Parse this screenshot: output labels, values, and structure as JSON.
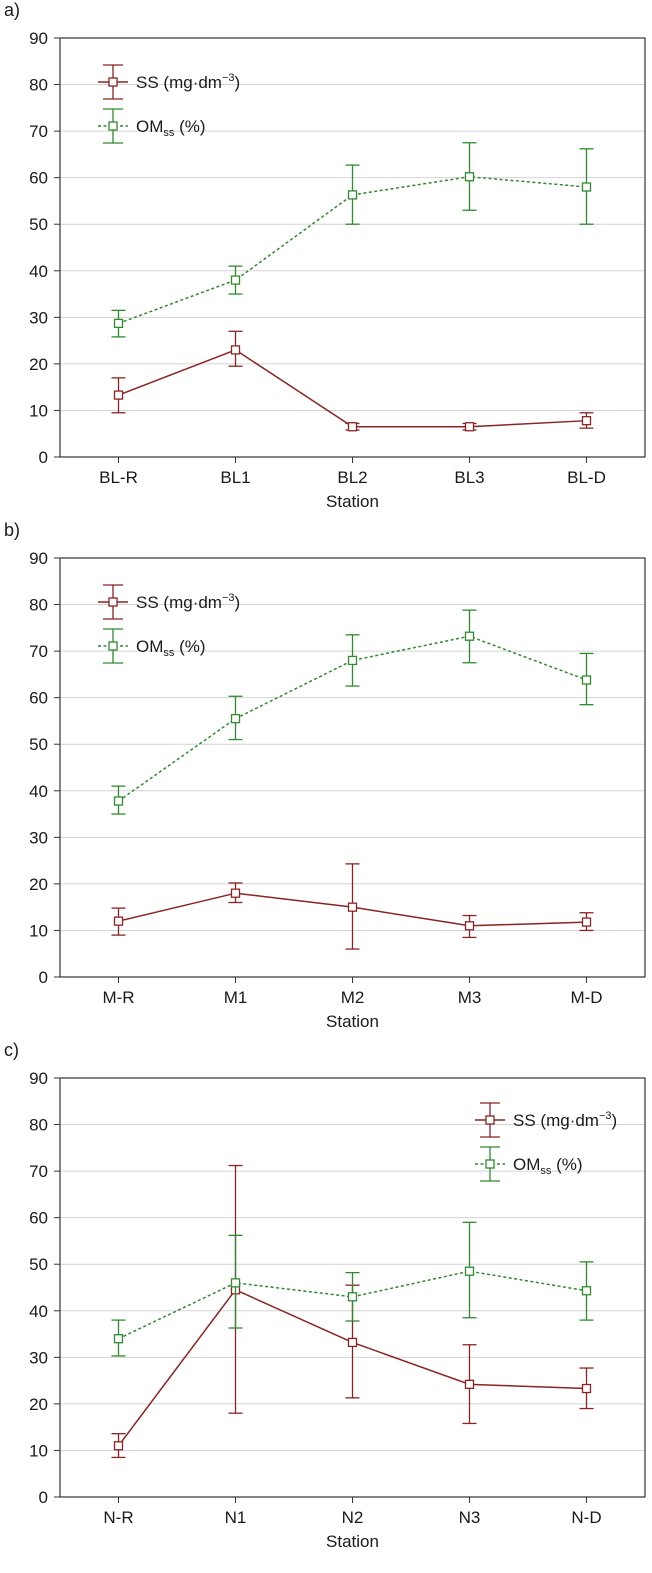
{
  "chart_data": [
    {
      "panel_label": "a)",
      "type": "line",
      "categories": [
        "BL-R",
        "BL1",
        "BL2",
        "BL3",
        "BL-D"
      ],
      "xlabel": "Station",
      "ylim": [
        0,
        90
      ],
      "yticks": [
        0,
        10,
        20,
        30,
        40,
        50,
        60,
        70,
        80,
        90
      ],
      "grid": true,
      "legend_position": "top-left",
      "series": [
        {
          "key": "ss",
          "name": "SS (mg·dm⁻³)",
          "color": "#8b2323",
          "style": "solid",
          "values": [
            13.3,
            23.0,
            6.5,
            6.5,
            7.8
          ],
          "err_low": [
            9.5,
            19.5,
            5.8,
            5.8,
            6.2
          ],
          "err_high": [
            17.0,
            27.0,
            7.2,
            7.2,
            9.5
          ]
        },
        {
          "key": "om",
          "name": "OMss (%)",
          "color": "#2e8b2e",
          "style": "dotted",
          "values": [
            28.7,
            38.0,
            56.3,
            60.2,
            58.0
          ],
          "err_low": [
            25.8,
            35.0,
            50.0,
            53.0,
            50.0
          ],
          "err_high": [
            31.5,
            41.0,
            62.7,
            67.5,
            66.2
          ]
        }
      ]
    },
    {
      "panel_label": "b)",
      "type": "line",
      "categories": [
        "M-R",
        "M1",
        "M2",
        "M3",
        "M-D"
      ],
      "xlabel": "Station",
      "ylim": [
        0,
        90
      ],
      "yticks": [
        0,
        10,
        20,
        30,
        40,
        50,
        60,
        70,
        80,
        90
      ],
      "grid": true,
      "legend_position": "top-left",
      "series": [
        {
          "key": "ss",
          "name": "SS (mg·dm⁻³)",
          "color": "#8b2323",
          "style": "solid",
          "values": [
            12.0,
            18.0,
            15.0,
            11.0,
            11.8
          ],
          "err_low": [
            9.0,
            16.0,
            6.0,
            8.5,
            10.0
          ],
          "err_high": [
            14.8,
            20.2,
            24.3,
            13.2,
            13.8
          ]
        },
        {
          "key": "om",
          "name": "OMss (%)",
          "color": "#2e8b2e",
          "style": "dotted",
          "values": [
            37.8,
            55.5,
            68.0,
            73.2,
            63.8
          ],
          "err_low": [
            35.0,
            51.0,
            62.5,
            67.5,
            58.5
          ],
          "err_high": [
            41.0,
            60.3,
            73.5,
            78.8,
            69.5
          ]
        }
      ]
    },
    {
      "panel_label": "c)",
      "type": "line",
      "categories": [
        "N-R",
        "N1",
        "N2",
        "N3",
        "N-D"
      ],
      "xlabel": "Station",
      "ylim": [
        0,
        90
      ],
      "yticks": [
        0,
        10,
        20,
        30,
        40,
        50,
        60,
        70,
        80,
        90
      ],
      "grid": true,
      "legend_position": "top-right",
      "series": [
        {
          "key": "ss",
          "name": "SS (mg·dm⁻³)",
          "color": "#8b2323",
          "style": "solid",
          "values": [
            11.0,
            44.5,
            33.2,
            24.2,
            23.3
          ],
          "err_low": [
            8.5,
            18.0,
            21.3,
            15.8,
            19.0
          ],
          "err_high": [
            13.6,
            71.2,
            45.5,
            32.7,
            27.7
          ]
        },
        {
          "key": "om",
          "name": "OMss (%)",
          "color": "#2e8b2e",
          "style": "dotted",
          "values": [
            34.0,
            46.0,
            43.0,
            48.5,
            44.3
          ],
          "err_low": [
            30.3,
            36.3,
            37.8,
            38.5,
            38.0
          ],
          "err_high": [
            38.0,
            56.2,
            48.2,
            59.0,
            50.5
          ]
        }
      ]
    }
  ],
  "legend": {
    "ss_main": "SS",
    "ss_unit_open": " (mg·dm",
    "ss_sup": "−3",
    "ss_unit_close": ")",
    "om_main": "OM",
    "om_sub": "ss",
    "om_unit": " (%)"
  }
}
